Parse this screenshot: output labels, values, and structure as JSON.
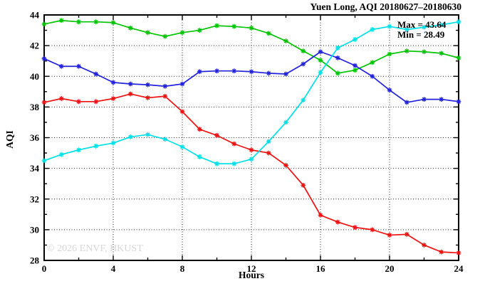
{
  "title": "Yuen Long, AQI 20180627–20180630",
  "annotation": {
    "max_label": "Max = 43.64",
    "min_label": "Min = 28.49"
  },
  "watermark": "© 2026 ENVF, HKUST",
  "chart_data": {
    "type": "line",
    "title": "Yuen Long, AQI 20180627–20180630",
    "xlabel": "Hours",
    "ylabel": "AQI",
    "xlim": [
      0,
      24
    ],
    "ylim": [
      28,
      44
    ],
    "grid": true,
    "legend_position": "top-right",
    "max_value": 43.64,
    "min_value": 28.49,
    "x_major_ticks": [
      0,
      4,
      8,
      12,
      16,
      20,
      24
    ],
    "x_minor_ticks": [
      2,
      6,
      10,
      14,
      18,
      22
    ],
    "y_major_ticks": [
      28,
      30,
      32,
      34,
      36,
      38,
      40,
      42,
      44
    ],
    "y_minor_ticks": [
      29,
      31,
      33,
      35,
      37,
      39,
      41,
      43
    ],
    "x": [
      0,
      1,
      2,
      3,
      4,
      5,
      6,
      7,
      8,
      9,
      10,
      11,
      12,
      13,
      14,
      15,
      16,
      17,
      18,
      19,
      20,
      21,
      22,
      23,
      24
    ],
    "series": [
      {
        "name": "green",
        "color": "#00C400",
        "values": [
          43.4,
          43.64,
          43.55,
          43.55,
          43.5,
          43.15,
          42.85,
          42.6,
          42.85,
          43.0,
          43.3,
          43.25,
          43.15,
          42.8,
          42.3,
          41.65,
          41.05,
          40.2,
          40.4,
          40.9,
          41.45,
          41.65,
          41.6,
          41.5,
          41.2
        ]
      },
      {
        "name": "blue",
        "color": "#2222DD",
        "values": [
          41.15,
          40.65,
          40.65,
          40.15,
          39.6,
          39.5,
          39.45,
          39.35,
          39.5,
          40.3,
          40.35,
          40.35,
          40.3,
          40.2,
          40.15,
          40.8,
          41.6,
          41.2,
          40.7,
          40.0,
          39.1,
          38.3,
          38.5,
          38.5,
          38.35
        ]
      },
      {
        "name": "red",
        "color": "#EE1111",
        "values": [
          38.3,
          38.55,
          38.35,
          38.35,
          38.55,
          38.85,
          38.6,
          38.7,
          37.7,
          36.55,
          36.15,
          35.6,
          35.2,
          35.0,
          34.2,
          32.9,
          30.95,
          30.5,
          30.15,
          30.0,
          29.65,
          29.7,
          29.0,
          28.55,
          28.49
        ]
      },
      {
        "name": "cyan",
        "color": "#00E0E8",
        "values": [
          34.5,
          34.9,
          35.2,
          35.45,
          35.65,
          36.05,
          36.2,
          35.9,
          35.4,
          34.75,
          34.3,
          34.3,
          34.6,
          35.75,
          37.0,
          38.45,
          40.25,
          41.85,
          42.4,
          43.05,
          43.25,
          43.05,
          43.2,
          43.35,
          43.55
        ]
      }
    ]
  }
}
